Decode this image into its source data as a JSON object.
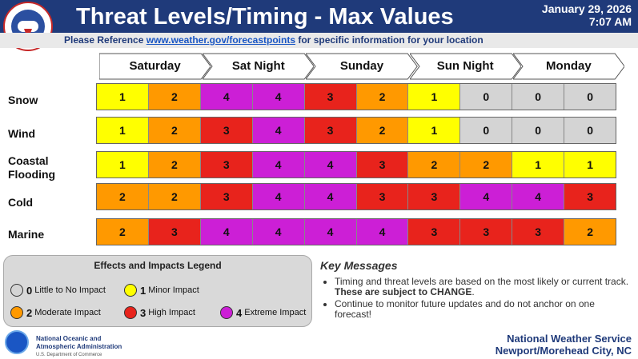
{
  "header": {
    "title": "Threat Levels/Timing - Max Values",
    "date": "January 29, 2026",
    "time": "7:07 AM"
  },
  "subheader": {
    "prefix": "Please Reference",
    "link": "www.weather.gov/forecastpoints",
    "suffix": "for specific information for your location"
  },
  "days": [
    "Saturday",
    "Sat Night",
    "Sunday",
    "Sun Night",
    "Monday"
  ],
  "rows": [
    {
      "label": "Snow",
      "values": [
        "1",
        "2",
        "4",
        "4",
        "3",
        "2",
        "1",
        "0",
        "0",
        "0"
      ]
    },
    {
      "label": "Wind",
      "values": [
        "1",
        "2",
        "3",
        "4",
        "3",
        "2",
        "1",
        "0",
        "0",
        "0"
      ]
    },
    {
      "label": "Coastal Flooding",
      "values": [
        "1",
        "2",
        "3",
        "4",
        "4",
        "3",
        "2",
        "2",
        "1",
        "1"
      ]
    },
    {
      "label": "Cold",
      "values": [
        "2",
        "2",
        "3",
        "4",
        "4",
        "3",
        "3",
        "4",
        "4",
        "3"
      ]
    },
    {
      "label": "Marine",
      "values": [
        "2",
        "3",
        "4",
        "4",
        "4",
        "4",
        "3",
        "3",
        "3",
        "2"
      ]
    }
  ],
  "legend": {
    "title": "Effects and Impacts Legend",
    "items": [
      {
        "level": "0",
        "label": "Little to No Impact",
        "color": "#d4d4d4"
      },
      {
        "level": "1",
        "label": "Minor Impact",
        "color": "#ffff00"
      },
      {
        "level": "2",
        "label": "Moderate Impact",
        "color": "#ff9900"
      },
      {
        "level": "3",
        "label": "High Impact",
        "color": "#e8231c"
      },
      {
        "level": "4",
        "label": "Extreme Impact",
        "color": "#cc1fd6"
      }
    ]
  },
  "key_messages": {
    "title": "Key Messages",
    "bullet1_text": "Timing and threat levels are based on the most likely or current track.",
    "bullet1_bold": "These are subject to CHANGE",
    "bullet1_end": ".",
    "bullet2": "Continue to monitor future updates and do not anchor on one forecast!"
  },
  "footer": {
    "noaa_line1": "National Oceanic and",
    "noaa_line2": "Atmospheric Administration",
    "noaa_line3": "U.S. Department of Commerce",
    "nws_line1": "National Weather Service",
    "nws_line2": "Newport/Morehead City, NC"
  },
  "colors": {
    "header_bg": "#1f3a7a",
    "level0": "#d4d4d4",
    "level1": "#ffff00",
    "level2": "#ff9900",
    "level3": "#e8231c",
    "level4": "#cc1fd6"
  }
}
